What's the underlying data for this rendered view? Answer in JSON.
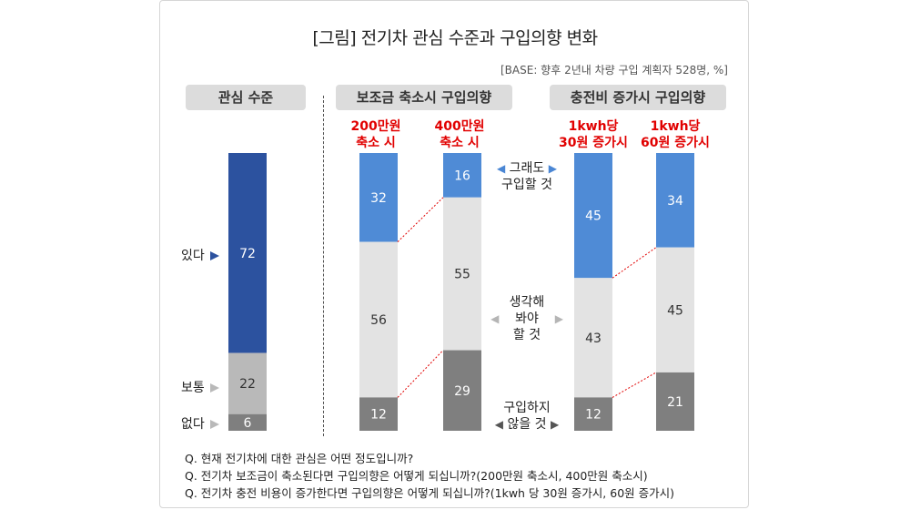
{
  "title": "[그림] 전기차 관심 수준과 구입의향 변화",
  "base_note": "[BASE: 향후 2년내 차량 구입 계획자 528명, %]",
  "group_headers": {
    "interest": "관심 수준",
    "subsidy": "보조금 축소시 구입의향",
    "charging": "충전비 증가시 구입의향"
  },
  "interest_labels": {
    "yes": "있다",
    "normal": "보통",
    "no": "없다"
  },
  "middle_labels": {
    "buy_anyway_1": "그래도",
    "buy_anyway_2": "구입할 것",
    "think_1": "생각해",
    "think_2": "봐야",
    "think_3": "할 것",
    "not_buy_1": "구입하지",
    "not_buy_2": "않을 것"
  },
  "column_headers": {
    "c2_l1": "200만원",
    "c2_l2": "축소 시",
    "c3_l1": "400만원",
    "c3_l2": "축소 시",
    "c4_l1": "1kwh당",
    "c4_l2": "30원 증가시",
    "c5_l1": "1kwh당",
    "c5_l2": "60원 증가시"
  },
  "notes": [
    "Q. 현재 전기차에 대한 관심은 어떤 정도입니까?",
    "Q. 전기차 보조금이 축소된다면 구입의향은 어떻게 되십니까?(200만원 축소시, 400만원 축소시)",
    "Q. 전기차 충전 비용이 증가한다면 구입의향은 어떻게 되십니까?(1kwh 당 30원 증가시, 60원 증가시)"
  ],
  "colors": {
    "interest_yes": "#2c529f",
    "interest_normal": "#b9b9b9",
    "interest_no": "#7f7f7f",
    "buy": "#4f8bd6",
    "think": "#e3e3e3",
    "not_buy": "#7f7f7f",
    "headline_red": "#e10000"
  },
  "chart_data": [
    {
      "type": "bar",
      "stacked": true,
      "group": "관심 수준",
      "categories": [
        "관심 수준"
      ],
      "series": [
        {
          "name": "있다",
          "values": [
            72
          ]
        },
        {
          "name": "보통",
          "values": [
            22
          ]
        },
        {
          "name": "없다",
          "values": [
            6
          ]
        }
      ]
    },
    {
      "type": "bar",
      "stacked": true,
      "group": "보조금 축소시 구입의향",
      "categories": [
        "200만원 축소 시",
        "400만원 축소 시"
      ],
      "series": [
        {
          "name": "그래도 구입할 것",
          "values": [
            32,
            16
          ]
        },
        {
          "name": "생각해 봐야 할 것",
          "values": [
            56,
            55
          ]
        },
        {
          "name": "구입하지 않을 것",
          "values": [
            12,
            29
          ]
        }
      ]
    },
    {
      "type": "bar",
      "stacked": true,
      "group": "충전비 증가시 구입의향",
      "categories": [
        "1kwh당 30원 증가시",
        "1kwh당 60원 증가시"
      ],
      "series": [
        {
          "name": "그래도 구입할 것",
          "values": [
            45,
            34
          ]
        },
        {
          "name": "생각해 봐야 할 것",
          "values": [
            43,
            45
          ]
        },
        {
          "name": "구입하지 않을 것",
          "values": [
            12,
            21
          ]
        }
      ]
    }
  ]
}
